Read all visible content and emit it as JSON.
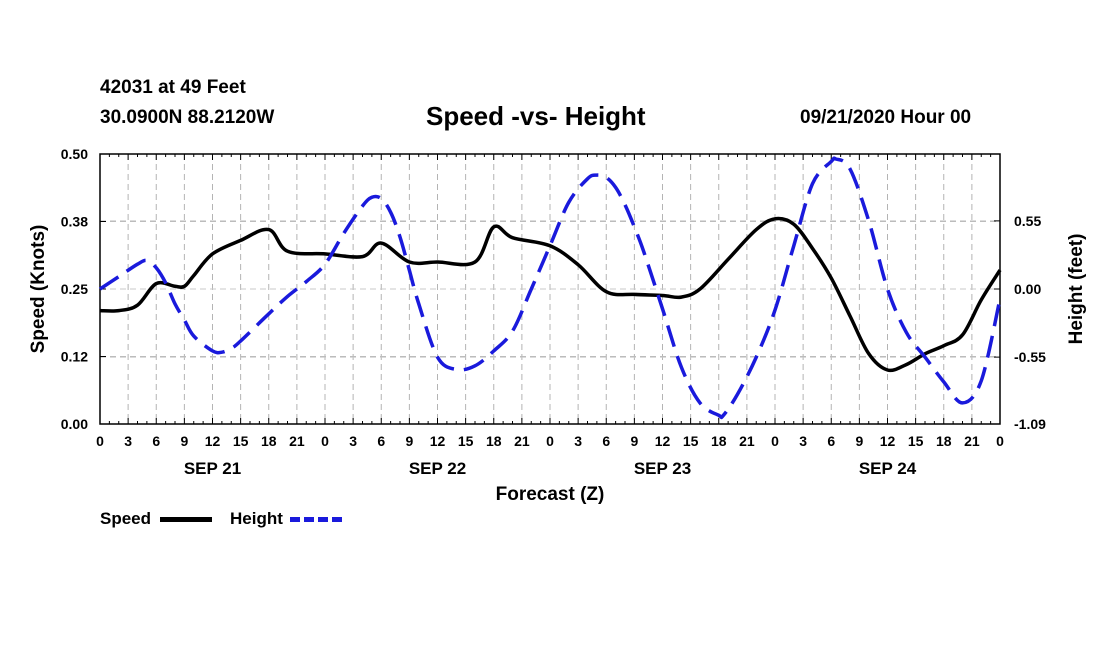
{
  "header": {
    "station": "42031 at 49 Feet",
    "coords": "30.0900N 88.2120W",
    "title": "Speed -vs- Height",
    "run": "09/21/2020 Hour 00"
  },
  "chart_data": {
    "type": "line",
    "title": "Speed -vs- Height",
    "xlabel": "Forecast (Z)",
    "ylabel_left": "Speed (Knots)",
    "ylabel_right": "Height (feet)",
    "x_hours": [
      0,
      96
    ],
    "ylim_left": [
      0,
      0.5
    ],
    "ylim_right": [
      -1.09,
      1.09
    ],
    "left_ticks": [
      "0.50",
      "0.38",
      "0.25",
      "0.12",
      "0.00"
    ],
    "left_tick_values": [
      0.5,
      0.375,
      0.25,
      0.125,
      0
    ],
    "right_ticks": [
      "0.55",
      "0.00",
      "-0.55",
      "-1.09"
    ],
    "right_tick_values": [
      0.55,
      0,
      -0.55,
      -1.09
    ],
    "x_tick_labels": [
      "0",
      "3",
      "6",
      "9",
      "12",
      "15",
      "18",
      "21",
      "0",
      "3",
      "6",
      "9",
      "12",
      "15",
      "18",
      "21",
      "0",
      "3",
      "6",
      "9",
      "12",
      "15",
      "18",
      "21",
      "0",
      "3",
      "6",
      "9",
      "12",
      "15",
      "18",
      "21",
      "0"
    ],
    "day_labels": [
      {
        "label": "SEP 21",
        "hour": 12
      },
      {
        "label": "SEP 22",
        "hour": 36
      },
      {
        "label": "SEP 23",
        "hour": 60
      },
      {
        "label": "SEP 24",
        "hour": 84
      }
    ],
    "grid": true,
    "series": [
      {
        "name": "Speed",
        "axis": "left",
        "color": "#000000",
        "style": "solid",
        "x": [
          0,
          2,
          4,
          6,
          8,
          9,
          10,
          12,
          15,
          18,
          20,
          24,
          28,
          30,
          33,
          36,
          40,
          42,
          44,
          48,
          51,
          54,
          57,
          60,
          62,
          64,
          67,
          70,
          72,
          74,
          76,
          78,
          80,
          82,
          84,
          86,
          88,
          90,
          92,
          94,
          96
        ],
        "y": [
          0.21,
          0.21,
          0.22,
          0.26,
          0.255,
          0.255,
          0.275,
          0.315,
          0.34,
          0.36,
          0.32,
          0.315,
          0.31,
          0.335,
          0.3,
          0.3,
          0.3,
          0.365,
          0.345,
          0.33,
          0.295,
          0.245,
          0.24,
          0.238,
          0.235,
          0.25,
          0.305,
          0.36,
          0.38,
          0.37,
          0.325,
          0.27,
          0.2,
          0.13,
          0.1,
          0.11,
          0.13,
          0.145,
          0.165,
          0.23,
          0.285
        ]
      },
      {
        "name": "Height",
        "axis": "right",
        "color": "#1a1adc",
        "style": "dashed",
        "x": [
          0,
          2,
          4,
          5,
          6,
          7,
          8,
          9,
          10,
          12,
          13,
          14,
          15,
          18,
          20,
          22,
          24,
          26,
          28,
          29,
          30,
          31,
          32,
          33,
          34,
          36,
          38,
          40,
          42,
          44,
          46,
          48,
          50,
          52,
          53,
          54,
          55,
          56,
          57,
          58,
          60,
          62,
          64,
          66,
          66.5,
          68,
          70,
          72,
          74,
          76,
          78,
          78.5,
          80,
          82,
          84,
          86,
          88,
          90,
          92,
          94,
          96
        ],
        "y": [
          0.0,
          0.1,
          0.2,
          0.23,
          0.17,
          0.05,
          -0.12,
          -0.25,
          -0.38,
          -0.5,
          -0.51,
          -0.48,
          -0.42,
          -0.2,
          -0.06,
          0.06,
          0.2,
          0.45,
          0.67,
          0.74,
          0.73,
          0.62,
          0.42,
          0.15,
          -0.12,
          -0.55,
          -0.65,
          -0.62,
          -0.5,
          -0.34,
          0.0,
          0.35,
          0.7,
          0.89,
          0.92,
          0.9,
          0.82,
          0.68,
          0.5,
          0.3,
          -0.16,
          -0.63,
          -0.92,
          -1.02,
          -1.02,
          -0.85,
          -0.55,
          -0.17,
          0.35,
          0.85,
          1.03,
          1.05,
          0.97,
          0.55,
          0.0,
          -0.35,
          -0.55,
          -0.75,
          -0.92,
          -0.74,
          -0.08
        ]
      }
    ],
    "legend": "bottom-left"
  },
  "legend": {
    "speed_label": "Speed",
    "height_label": "Height"
  }
}
